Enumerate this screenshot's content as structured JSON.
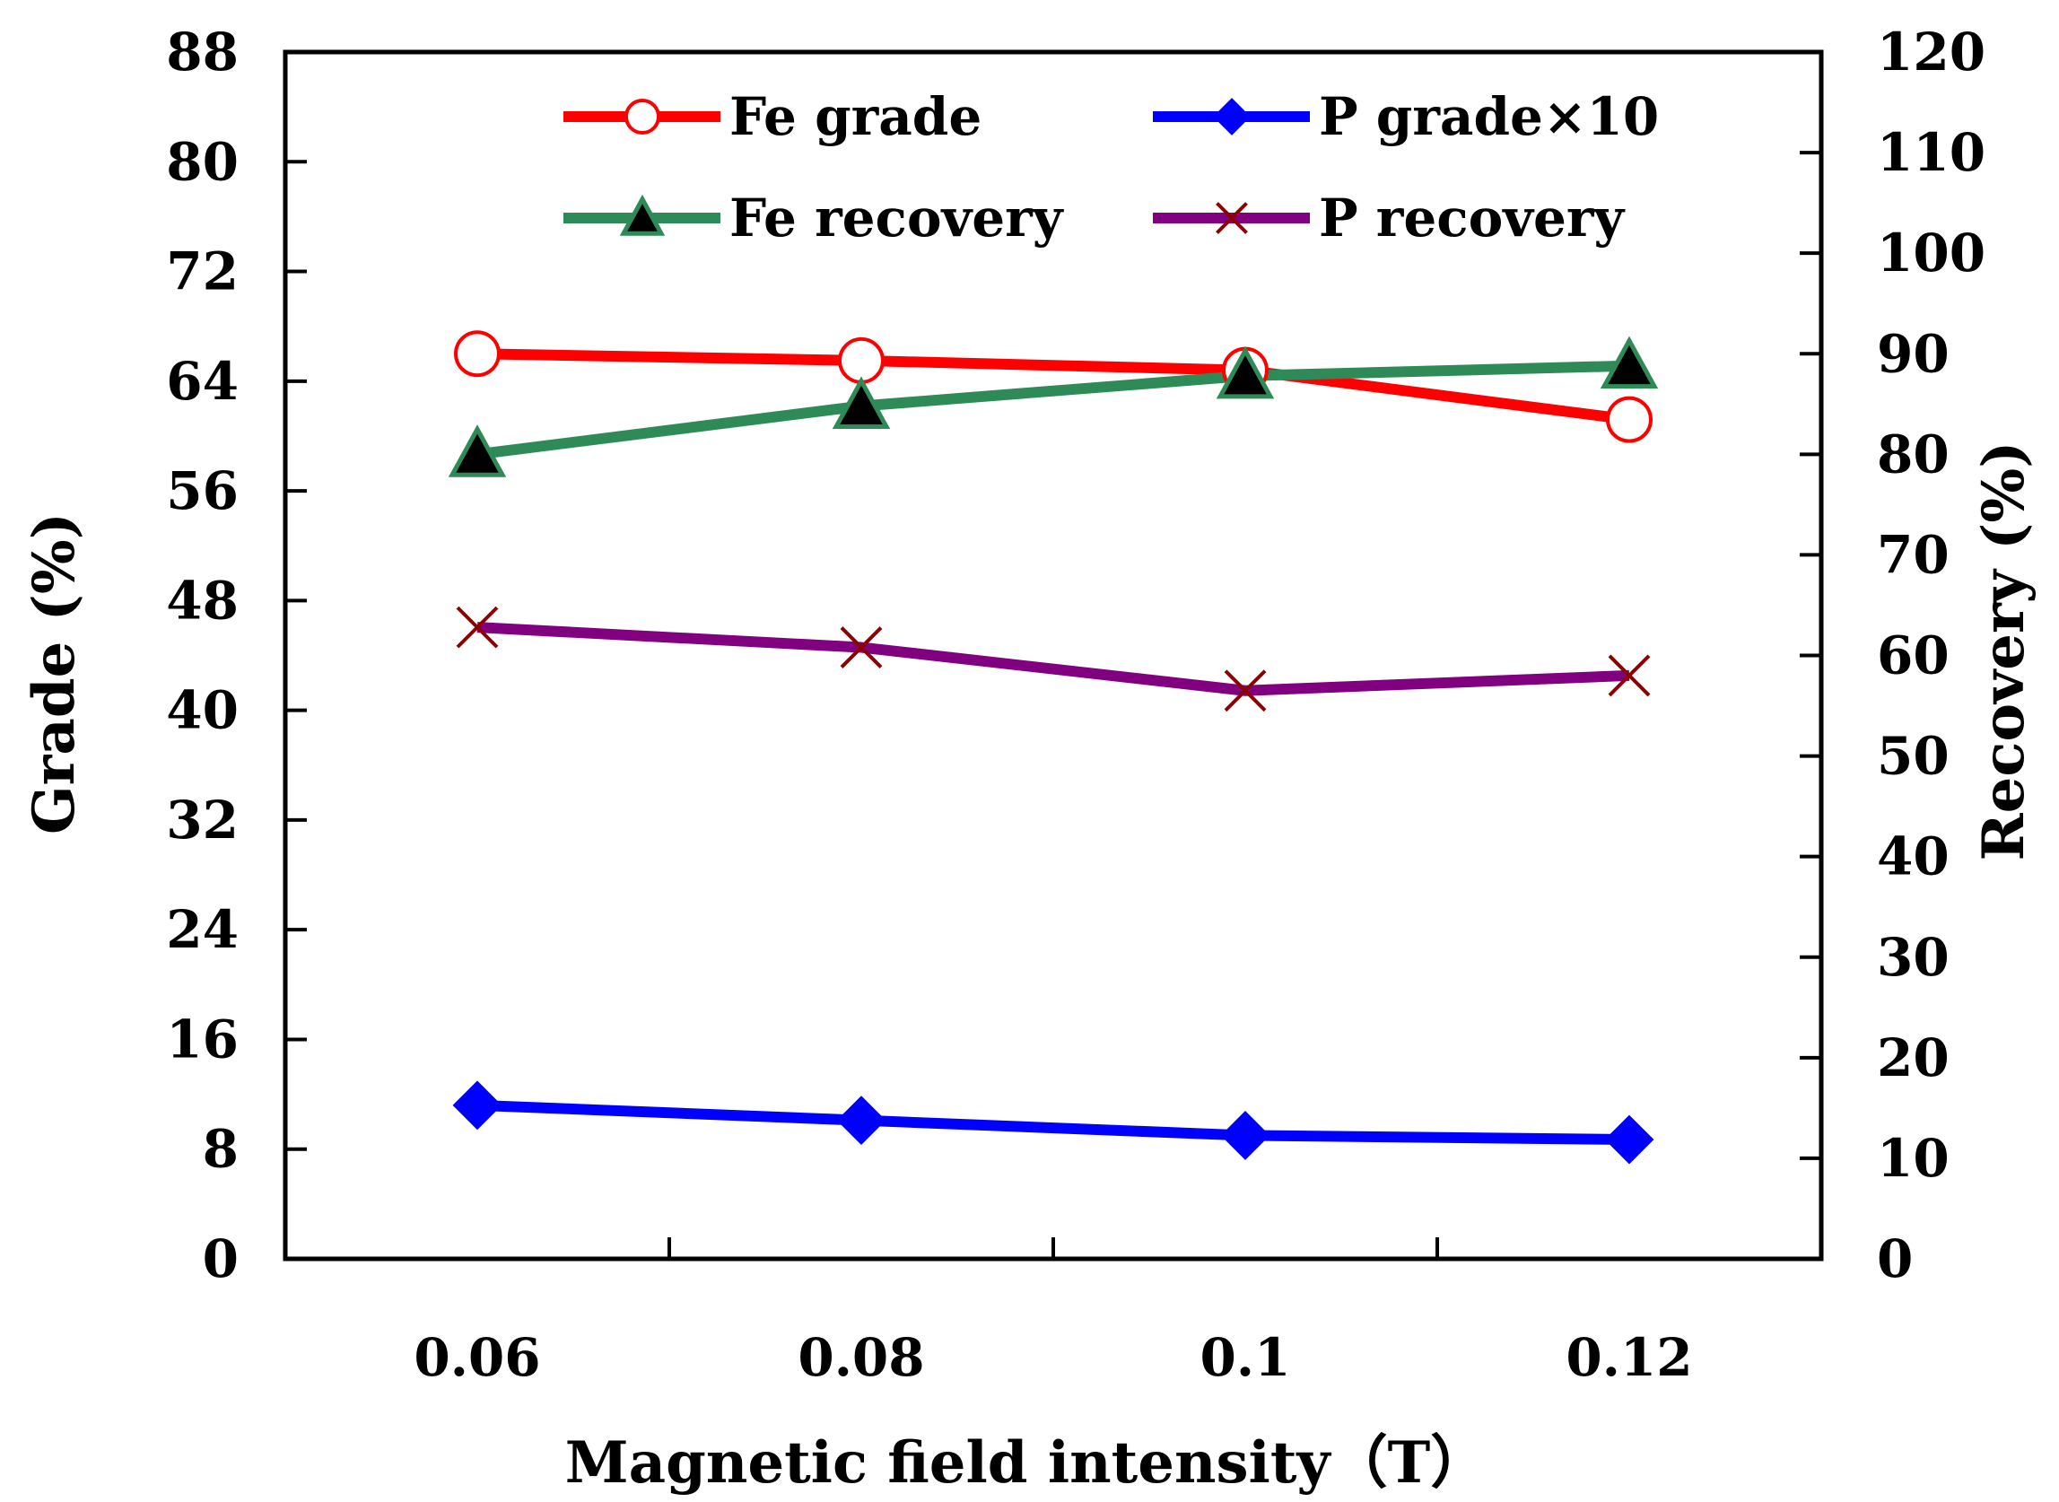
{
  "chart_data": {
    "type": "line",
    "xlabel": "Magnetic field intensity（T）",
    "ylabel_left": "Grade (%)",
    "ylabel_right": "Recovery (%)",
    "x": [
      "0.06",
      "0.08",
      "0.1",
      "0.12"
    ],
    "x_values": [
      0.06,
      0.08,
      0.1,
      0.12
    ],
    "xlim": [
      0.05,
      0.13
    ],
    "ylim_left": [
      0,
      88
    ],
    "yticks_left": [
      "0",
      "8",
      "16",
      "24",
      "32",
      "40",
      "48",
      "56",
      "64",
      "72",
      "80",
      "88"
    ],
    "ylim_right": [
      0,
      120
    ],
    "yticks_right": [
      "0",
      "10",
      "20",
      "30",
      "40",
      "50",
      "60",
      "70",
      "80",
      "90",
      "100",
      "110",
      "120"
    ],
    "legend_position": "top",
    "series": [
      {
        "name": "Fe grade",
        "axis": "left",
        "values": [
          66.0,
          65.5,
          64.8,
          61.2
        ],
        "color": "#ff0000",
        "marker": "open-circle"
      },
      {
        "name": "P grade×10",
        "axis": "left",
        "values": [
          11.2,
          10.1,
          9.0,
          8.7
        ],
        "color": "#0000ff",
        "marker": "diamond"
      },
      {
        "name": "Fe recovery",
        "axis": "right",
        "values": [
          80.0,
          84.8,
          87.8,
          88.8
        ],
        "color": "#2e8b57",
        "marker": "triangle"
      },
      {
        "name": "P recovery",
        "axis": "right",
        "values": [
          62.8,
          60.8,
          56.5,
          58.0
        ],
        "color": "#800080",
        "marker": "x"
      }
    ]
  }
}
